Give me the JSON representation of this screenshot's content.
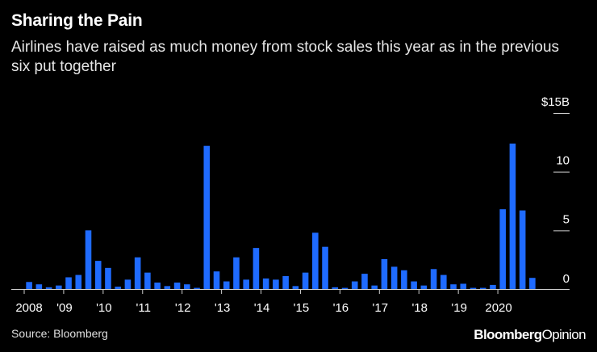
{
  "title": "Sharing the Pain",
  "subtitle": "Airlines have raised as much money from stock sales this year as in the previous six put together",
  "source": "Source: Bloomberg",
  "brand": {
    "part1": "Bloomberg",
    "part2": "Opinion"
  },
  "colors": {
    "bar": "#1f6bff",
    "background": "#000000",
    "text": "#ffffff",
    "axis": "#cfcfcf"
  },
  "chart_data": {
    "type": "bar",
    "title": "Sharing the Pain",
    "xlabel": "",
    "ylabel": "",
    "unit": "$B",
    "ylim": [
      0,
      15
    ],
    "y_ticks": [
      {
        "value": 0,
        "label": "0"
      },
      {
        "value": 5,
        "label": "5"
      },
      {
        "value": 10,
        "label": "10"
      },
      {
        "value": 15,
        "label": "$15B"
      }
    ],
    "x_ticks": [
      {
        "quarter_index": 0,
        "label": "2008"
      },
      {
        "quarter_index": 4,
        "label": "'09"
      },
      {
        "quarter_index": 8,
        "label": "'10"
      },
      {
        "quarter_index": 12,
        "label": "'11"
      },
      {
        "quarter_index": 16,
        "label": "'12"
      },
      {
        "quarter_index": 20,
        "label": "'13"
      },
      {
        "quarter_index": 24,
        "label": "'14"
      },
      {
        "quarter_index": 28,
        "label": "'15"
      },
      {
        "quarter_index": 32,
        "label": "'16"
      },
      {
        "quarter_index": 36,
        "label": "'17"
      },
      {
        "quarter_index": 40,
        "label": "'18"
      },
      {
        "quarter_index": 44,
        "label": "'19"
      },
      {
        "quarter_index": 48,
        "label": "2020"
      }
    ],
    "categories": [
      "2008 Q1",
      "2008 Q2",
      "2008 Q3",
      "2008 Q4",
      "2009 Q1",
      "2009 Q2",
      "2009 Q3",
      "2009 Q4",
      "2010 Q1",
      "2010 Q2",
      "2010 Q3",
      "2010 Q4",
      "2011 Q1",
      "2011 Q2",
      "2011 Q3",
      "2011 Q4",
      "2012 Q1",
      "2012 Q2",
      "2012 Q3",
      "2012 Q4",
      "2013 Q1",
      "2013 Q2",
      "2013 Q3",
      "2013 Q4",
      "2014 Q1",
      "2014 Q2",
      "2014 Q3",
      "2014 Q4",
      "2015 Q1",
      "2015 Q2",
      "2015 Q3",
      "2015 Q4",
      "2016 Q1",
      "2016 Q2",
      "2016 Q3",
      "2016 Q4",
      "2017 Q1",
      "2017 Q2",
      "2017 Q3",
      "2017 Q4",
      "2018 Q1",
      "2018 Q2",
      "2018 Q3",
      "2018 Q4",
      "2019 Q1",
      "2019 Q2",
      "2019 Q3",
      "2019 Q4",
      "2020 Q1",
      "2020 Q2",
      "2020 Q3",
      "2020 Q4"
    ],
    "values": [
      0.6,
      0.4,
      0.15,
      0.3,
      1.0,
      1.2,
      5.0,
      2.4,
      1.8,
      0.2,
      0.8,
      2.7,
      1.4,
      0.55,
      0.25,
      0.55,
      0.4,
      0.1,
      12.2,
      1.5,
      0.65,
      2.7,
      0.8,
      3.5,
      0.9,
      0.8,
      1.1,
      0.25,
      1.4,
      4.8,
      3.6,
      0.15,
      0.1,
      0.65,
      1.3,
      0.3,
      2.55,
      1.9,
      1.6,
      0.65,
      0.3,
      1.7,
      1.2,
      0.4,
      0.45,
      0.1,
      0.1,
      0.35,
      6.8,
      12.4,
      6.7,
      0.95
    ]
  }
}
